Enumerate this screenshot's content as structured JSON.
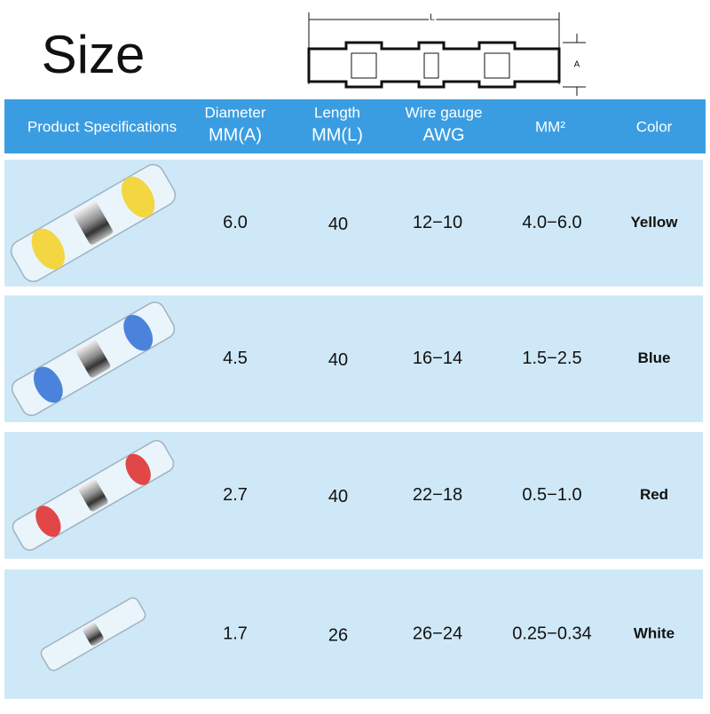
{
  "title": "Size",
  "diagram": {
    "length_label": "L",
    "diameter_label": "A"
  },
  "table": {
    "header": [
      [
        "Product Specifications"
      ],
      [
        "Diameter",
        "MM(A)"
      ],
      [
        "Length",
        "MM(L)"
      ],
      [
        "Wire gauge",
        "AWG"
      ],
      [
        "MM²"
      ],
      [
        "Color"
      ]
    ],
    "rows": [
      [
        "6.0",
        "40",
        "12−10",
        "4.0−6.0",
        "Yellow"
      ],
      [
        "4.5",
        "40",
        "16−14",
        "1.5−2.5",
        "Blue"
      ],
      [
        "2.7",
        "40",
        "22−18",
        "0.5−1.0",
        "Red"
      ],
      [
        "1.7",
        "26",
        "26−24",
        "0.25−0.34",
        "White"
      ]
    ]
  }
}
